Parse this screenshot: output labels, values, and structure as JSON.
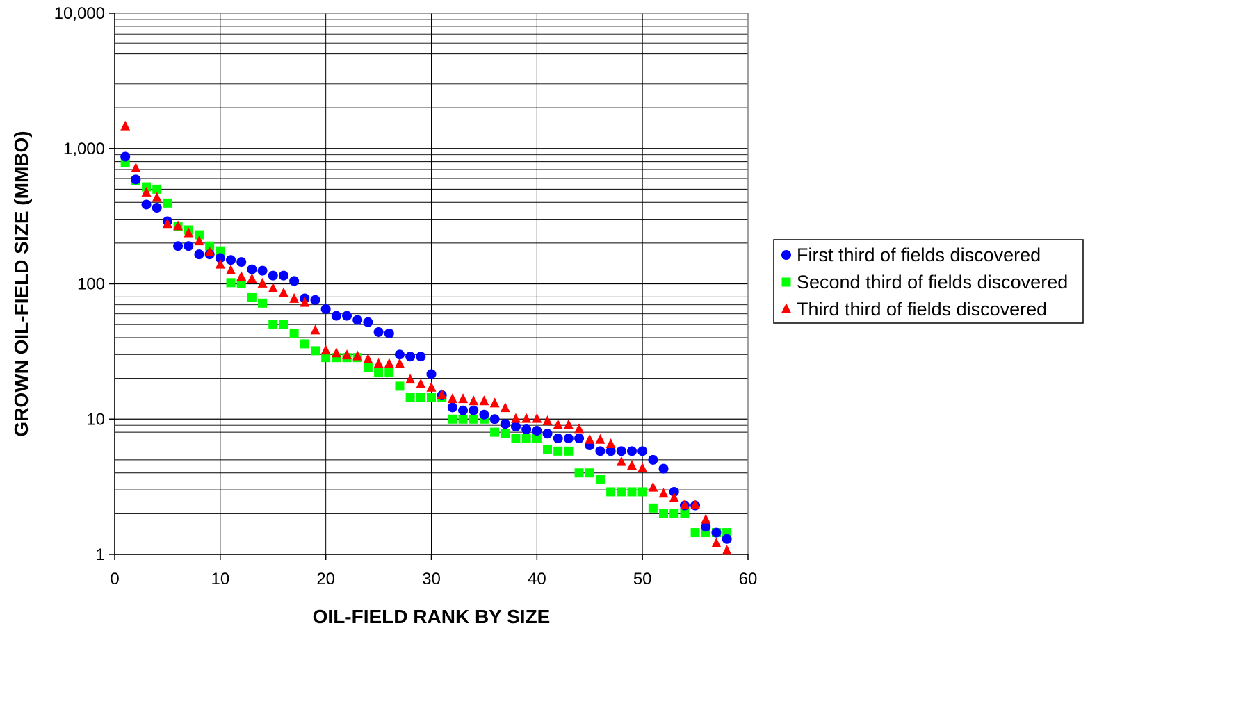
{
  "chart_data": {
    "type": "scatter",
    "xlabel": "OIL-FIELD RANK BY SIZE",
    "ylabel": "GROWN OIL-FIELD SIZE (MMBO)",
    "xlim": [
      0,
      60
    ],
    "ylim": [
      1,
      10000
    ],
    "x_scale": "linear",
    "y_scale": "log",
    "x_ticks": [
      "0",
      "10",
      "20",
      "30",
      "40",
      "50",
      "60"
    ],
    "y_ticks": [
      "1",
      "10",
      "100",
      "1,000",
      "10,000"
    ],
    "grid": true,
    "legend_position": "right",
    "series": [
      {
        "name": "First third of fields discovered",
        "marker": "circle",
        "color": "#0000ff",
        "points": [
          [
            1,
            870
          ],
          [
            2,
            590
          ],
          [
            3,
            385
          ],
          [
            4,
            365
          ],
          [
            5,
            290
          ],
          [
            6,
            190
          ],
          [
            7,
            190
          ],
          [
            8,
            165
          ],
          [
            9,
            165
          ],
          [
            10,
            155
          ],
          [
            11,
            150
          ],
          [
            12,
            145
          ],
          [
            13,
            128
          ],
          [
            14,
            125
          ],
          [
            15,
            115
          ],
          [
            16,
            115
          ],
          [
            17,
            105
          ],
          [
            18,
            78
          ],
          [
            19,
            76
          ],
          [
            20,
            65
          ],
          [
            21,
            58
          ],
          [
            22,
            58
          ],
          [
            23,
            54
          ],
          [
            24,
            52
          ],
          [
            25,
            44
          ],
          [
            26,
            43
          ],
          [
            27,
            30
          ],
          [
            28,
            29
          ],
          [
            29,
            29
          ],
          [
            30,
            21.5
          ],
          [
            31,
            15
          ],
          [
            32,
            12.2
          ],
          [
            33,
            11.6
          ],
          [
            34,
            11.6
          ],
          [
            35,
            10.8
          ],
          [
            36,
            10
          ],
          [
            37,
            9.2
          ],
          [
            38,
            8.8
          ],
          [
            39,
            8.4
          ],
          [
            40,
            8.2
          ],
          [
            41,
            7.8
          ],
          [
            42,
            7.2
          ],
          [
            43,
            7.2
          ],
          [
            44,
            7.2
          ],
          [
            45,
            6.4
          ],
          [
            46,
            5.8
          ],
          [
            47,
            5.8
          ],
          [
            48,
            5.8
          ],
          [
            49,
            5.8
          ],
          [
            50,
            5.8
          ],
          [
            51,
            5
          ],
          [
            52,
            4.3
          ],
          [
            53,
            2.9
          ],
          [
            54,
            2.3
          ],
          [
            55,
            2.3
          ],
          [
            56,
            1.6
          ],
          [
            57,
            1.45
          ],
          [
            58,
            1.3
          ]
        ]
      },
      {
        "name": "Second third of fields discovered",
        "marker": "square",
        "color": "#00ff00",
        "points": [
          [
            1,
            790
          ],
          [
            2,
            580
          ],
          [
            3,
            520
          ],
          [
            4,
            500
          ],
          [
            5,
            395
          ],
          [
            6,
            265
          ],
          [
            7,
            250
          ],
          [
            8,
            230
          ],
          [
            9,
            190
          ],
          [
            10,
            175
          ],
          [
            11,
            102
          ],
          [
            12,
            100
          ],
          [
            13,
            79
          ],
          [
            14,
            72
          ],
          [
            15,
            50
          ],
          [
            16,
            50
          ],
          [
            17,
            43
          ],
          [
            18,
            36
          ],
          [
            19,
            32
          ],
          [
            20,
            28.5
          ],
          [
            21,
            28.5
          ],
          [
            22,
            28.5
          ],
          [
            23,
            28.5
          ],
          [
            24,
            24
          ],
          [
            25,
            22
          ],
          [
            26,
            22
          ],
          [
            27,
            17.5
          ],
          [
            28,
            14.5
          ],
          [
            29,
            14.5
          ],
          [
            30,
            14.5
          ],
          [
            31,
            14.5
          ],
          [
            32,
            10
          ],
          [
            33,
            10
          ],
          [
            34,
            10
          ],
          [
            35,
            10
          ],
          [
            36,
            8
          ],
          [
            37,
            7.8
          ],
          [
            38,
            7.2
          ],
          [
            39,
            7.2
          ],
          [
            40,
            7.2
          ],
          [
            41,
            6
          ],
          [
            42,
            5.8
          ],
          [
            43,
            5.8
          ],
          [
            44,
            4
          ],
          [
            45,
            4
          ],
          [
            46,
            3.6
          ],
          [
            47,
            2.9
          ],
          [
            48,
            2.9
          ],
          [
            49,
            2.9
          ],
          [
            50,
            2.9
          ],
          [
            51,
            2.2
          ],
          [
            52,
            2
          ],
          [
            53,
            2
          ],
          [
            54,
            2
          ],
          [
            55,
            1.45
          ],
          [
            56,
            1.45
          ],
          [
            57,
            1.45
          ],
          [
            58,
            1.45
          ]
        ]
      },
      {
        "name": "Third third of fields discovered",
        "marker": "triangle",
        "color": "#ff0000",
        "points": [
          [
            1,
            1450
          ],
          [
            2,
            710
          ],
          [
            3,
            470
          ],
          [
            4,
            430
          ],
          [
            5,
            275
          ],
          [
            6,
            265
          ],
          [
            7,
            235
          ],
          [
            8,
            205
          ],
          [
            9,
            170
          ],
          [
            10,
            138
          ],
          [
            11,
            125
          ],
          [
            12,
            112
          ],
          [
            13,
            108
          ],
          [
            14,
            100
          ],
          [
            15,
            92
          ],
          [
            16,
            85
          ],
          [
            17,
            77
          ],
          [
            18,
            72
          ],
          [
            19,
            45
          ],
          [
            20,
            32
          ],
          [
            21,
            30.5
          ],
          [
            22,
            29.5
          ],
          [
            23,
            29
          ],
          [
            24,
            27.5
          ],
          [
            25,
            25.5
          ],
          [
            26,
            25.5
          ],
          [
            27,
            25.5
          ],
          [
            28,
            19.5
          ],
          [
            29,
            18
          ],
          [
            30,
            17
          ],
          [
            31,
            15
          ],
          [
            32,
            14
          ],
          [
            33,
            14
          ],
          [
            34,
            13.5
          ],
          [
            35,
            13.5
          ],
          [
            36,
            13
          ],
          [
            37,
            12
          ],
          [
            38,
            10
          ],
          [
            39,
            10
          ],
          [
            40,
            10
          ],
          [
            41,
            9.6
          ],
          [
            42,
            9
          ],
          [
            43,
            9
          ],
          [
            44,
            8.4
          ],
          [
            45,
            7
          ],
          [
            46,
            7
          ],
          [
            47,
            6.5
          ],
          [
            48,
            4.8
          ],
          [
            49,
            4.5
          ],
          [
            50,
            4.3
          ],
          [
            51,
            3.1
          ],
          [
            52,
            2.8
          ],
          [
            53,
            2.6
          ],
          [
            54,
            2.3
          ],
          [
            55,
            2.3
          ],
          [
            56,
            1.8
          ],
          [
            57,
            1.2
          ],
          [
            58,
            1.06
          ]
        ]
      }
    ]
  }
}
